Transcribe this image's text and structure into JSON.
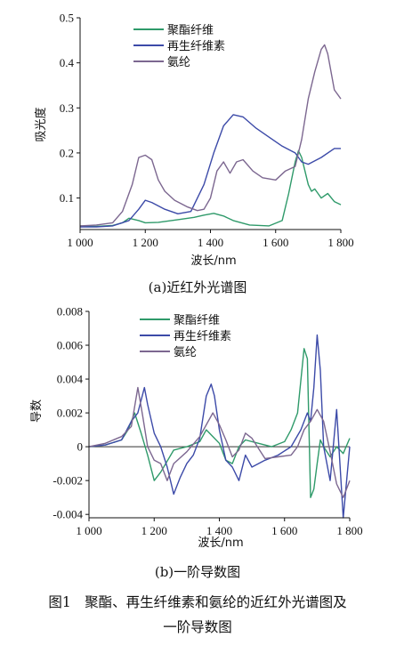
{
  "figure": {
    "caption_line1": "图1　聚酯、再生纤维素和氨纶的近红外光谱图及",
    "caption_line2": "一阶导数图"
  },
  "chart_data": [
    {
      "type": "line",
      "subtitle": "(a)近红外光谱图",
      "xlabel": "波长/nm",
      "ylabel": "吸光度",
      "xlim": [
        1000,
        1800
      ],
      "ylim": [
        0.03,
        0.5
      ],
      "xticks": [
        1000,
        1200,
        1400,
        1600,
        1800
      ],
      "xtick_labels": [
        "1 000",
        "1 200",
        "1 400",
        "1 600",
        "1 800"
      ],
      "yticks": [
        0.1,
        0.2,
        0.3,
        0.4,
        0.5
      ],
      "ytick_labels": [
        "0.1",
        "0.2",
        "0.3",
        "0.4",
        "0.5"
      ],
      "grid": false,
      "legend_position": "top-center",
      "series": [
        {
          "name": "聚酯纤维",
          "color": "#2f9a6a",
          "x": [
            1000,
            1050,
            1100,
            1130,
            1150,
            1180,
            1200,
            1240,
            1300,
            1350,
            1380,
            1410,
            1440,
            1470,
            1520,
            1580,
            1620,
            1640,
            1660,
            1670,
            1680,
            1690,
            1700,
            1710,
            1720,
            1740,
            1760,
            1780,
            1800
          ],
          "y": [
            0.038,
            0.037,
            0.039,
            0.045,
            0.055,
            0.05,
            0.045,
            0.046,
            0.052,
            0.057,
            0.062,
            0.066,
            0.06,
            0.05,
            0.04,
            0.038,
            0.05,
            0.11,
            0.18,
            0.205,
            0.19,
            0.16,
            0.13,
            0.115,
            0.12,
            0.1,
            0.11,
            0.092,
            0.085
          ]
        },
        {
          "name": "再生纤维素",
          "color": "#3c4aa8",
          "x": [
            1000,
            1050,
            1100,
            1150,
            1180,
            1200,
            1220,
            1260,
            1300,
            1340,
            1380,
            1410,
            1440,
            1470,
            1500,
            1540,
            1580,
            1620,
            1660,
            1680,
            1700,
            1740,
            1780,
            1800
          ],
          "y": [
            0.036,
            0.036,
            0.038,
            0.05,
            0.075,
            0.095,
            0.09,
            0.075,
            0.065,
            0.07,
            0.13,
            0.2,
            0.26,
            0.285,
            0.28,
            0.255,
            0.235,
            0.215,
            0.2,
            0.18,
            0.175,
            0.19,
            0.21,
            0.21
          ]
        },
        {
          "name": "氨纶",
          "color": "#7c6790",
          "x": [
            1000,
            1050,
            1100,
            1130,
            1160,
            1180,
            1200,
            1220,
            1240,
            1260,
            1290,
            1330,
            1360,
            1380,
            1400,
            1420,
            1440,
            1460,
            1480,
            1500,
            1530,
            1560,
            1600,
            1630,
            1660,
            1680,
            1700,
            1720,
            1740,
            1750,
            1760,
            1780,
            1800
          ],
          "y": [
            0.038,
            0.04,
            0.045,
            0.07,
            0.13,
            0.19,
            0.195,
            0.185,
            0.14,
            0.115,
            0.095,
            0.08,
            0.072,
            0.075,
            0.1,
            0.16,
            0.18,
            0.155,
            0.18,
            0.185,
            0.16,
            0.145,
            0.14,
            0.16,
            0.17,
            0.23,
            0.32,
            0.38,
            0.43,
            0.44,
            0.42,
            0.34,
            0.32
          ]
        }
      ]
    },
    {
      "type": "line",
      "subtitle": "(b)一阶导数图",
      "xlabel": "波长/nm",
      "ylabel": "导数",
      "xlim": [
        1000,
        1800
      ],
      "ylim": [
        -0.0042,
        0.008
      ],
      "xticks": [
        1000,
        1200,
        1400,
        1600,
        1800
      ],
      "xtick_labels": [
        "1 000",
        "1 200",
        "1 400",
        "1 600",
        "1 800"
      ],
      "yticks": [
        -0.004,
        -0.002,
        0,
        0.002,
        0.004,
        0.006,
        0.008
      ],
      "ytick_labels": [
        "-0.004",
        "-0.002",
        "0",
        "0.002",
        "0.004",
        "0.006",
        "0.008"
      ],
      "grid": false,
      "legend_position": "top-center",
      "series": [
        {
          "name": "聚酯纤维",
          "color": "#2f9a6a",
          "x": [
            1000,
            1050,
            1100,
            1120,
            1140,
            1160,
            1180,
            1200,
            1220,
            1260,
            1300,
            1340,
            1360,
            1380,
            1400,
            1420,
            1440,
            1460,
            1480,
            1520,
            1560,
            1600,
            1620,
            1640,
            1660,
            1670,
            1680,
            1690,
            1700,
            1710,
            1720,
            1740,
            1760,
            1780,
            1800
          ],
          "y": [
            0.0,
            0.0001,
            0.0004,
            0.001,
            0.002,
            0.0008,
            -0.0005,
            -0.002,
            -0.0015,
            -0.0002,
            0.0,
            0.0003,
            0.001,
            0.0006,
            0.0002,
            -0.0008,
            -0.001,
            0.0,
            0.0004,
            0.0002,
            0.0,
            0.0003,
            0.001,
            0.002,
            0.0058,
            0.0052,
            -0.003,
            -0.0025,
            -0.001,
            0.0004,
            0.0,
            -0.0006,
            0.0,
            -0.0004,
            0.0005
          ]
        },
        {
          "name": "再生纤维素",
          "color": "#3c4aa8",
          "x": [
            1000,
            1050,
            1100,
            1130,
            1150,
            1170,
            1180,
            1200,
            1220,
            1240,
            1260,
            1280,
            1300,
            1320,
            1340,
            1360,
            1375,
            1385,
            1400,
            1420,
            1440,
            1460,
            1480,
            1500,
            1540,
            1580,
            1620,
            1650,
            1670,
            1680,
            1690,
            1700,
            1710,
            1720,
            1740,
            1760,
            1780,
            1800
          ],
          "y": [
            0.0,
            0.0001,
            0.0004,
            0.0015,
            0.002,
            0.0035,
            0.0025,
            0.0008,
            0.0,
            -0.0012,
            -0.0028,
            -0.0018,
            -0.001,
            -0.0005,
            0.0005,
            0.003,
            0.0037,
            0.003,
            0.001,
            -0.0008,
            -0.0012,
            -0.002,
            -0.0005,
            -0.0012,
            -0.0008,
            -0.0005,
            0.0,
            0.001,
            0.002,
            0.0015,
            0.0035,
            0.0066,
            0.0045,
            0.0,
            -0.002,
            0.0022,
            -0.0042,
            0.0
          ]
        },
        {
          "name": "氨纶",
          "color": "#7c6790",
          "x": [
            1000,
            1050,
            1100,
            1130,
            1150,
            1165,
            1180,
            1200,
            1220,
            1240,
            1260,
            1300,
            1340,
            1380,
            1400,
            1420,
            1440,
            1460,
            1480,
            1500,
            1540,
            1580,
            1620,
            1640,
            1660,
            1680,
            1700,
            1720,
            1740,
            1760,
            1780,
            1800
          ],
          "y": [
            0.0,
            0.0002,
            0.0006,
            0.0012,
            0.0035,
            0.0018,
            0.0,
            -0.0008,
            -0.001,
            -0.002,
            -0.001,
            -0.0003,
            0.0006,
            0.002,
            0.0013,
            0.0004,
            -0.0006,
            -0.0002,
            0.0008,
            0.0005,
            -0.0007,
            -0.0006,
            -0.0005,
            0.0,
            0.001,
            0.0015,
            0.0022,
            0.0015,
            -0.0003,
            -0.0022,
            -0.003,
            -0.002
          ]
        }
      ]
    }
  ]
}
